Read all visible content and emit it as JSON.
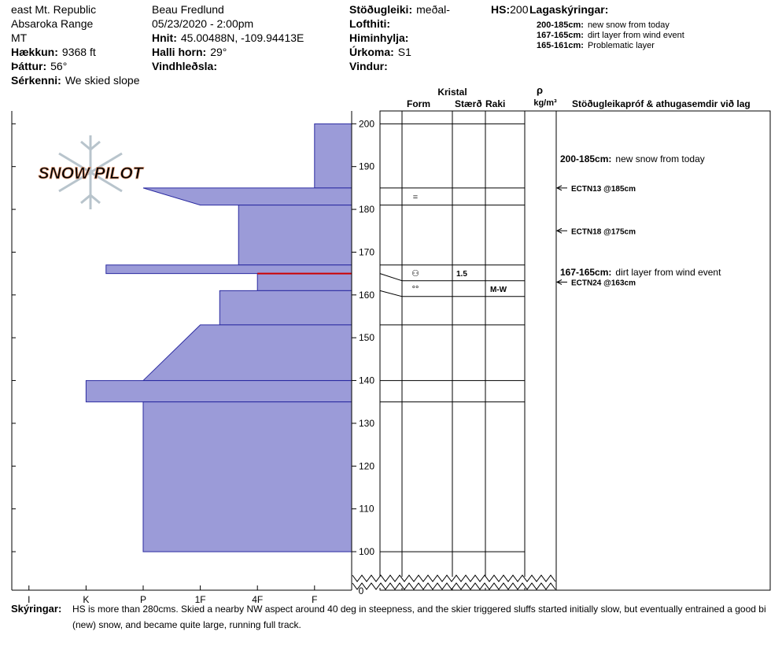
{
  "header": {
    "location": [
      "east Mt. Republic",
      "Absaroka Range",
      "MT"
    ],
    "fields_left": [
      {
        "label": "Hækkun:",
        "value": "9368 ft"
      },
      {
        "label": "Þáttur:",
        "value": "56°"
      },
      {
        "label": "Sérkenni:",
        "value": "We skied slope"
      }
    ],
    "observer": "Beau  Fredlund",
    "datetime": "05/23/2020 - 2:00pm",
    "fields_mid": [
      {
        "label": "Hnit:",
        "value": "45.00488N, -109.94413E"
      },
      {
        "label": "Halli horn:",
        "value": "29°"
      },
      {
        "label": "Vindhleðsla:"
      }
    ],
    "fields_right": [
      {
        "label": "Stöðugleiki:",
        "value": "meðal-"
      },
      {
        "label": "Lofthiti:"
      },
      {
        "label": "Himinhylja:"
      },
      {
        "label": "Úrkoma:",
        "value": "S1"
      },
      {
        "label": "Vindur:"
      }
    ],
    "hs": {
      "label": "HS:",
      "value": "200"
    },
    "legend_title": "Lagaskýringar:",
    "legend": [
      {
        "label": "200-185cm:",
        "text": "new snow from today"
      },
      {
        "label": "167-165cm:",
        "text": "dirt layer from wind event"
      },
      {
        "label": "165-161cm:",
        "text": "Problematic layer"
      }
    ]
  },
  "logo": "SNOW PILOT",
  "chart_data": {
    "type": "snow-profile",
    "xlim": [
      6.3,
      0.35
    ],
    "xticks": [
      {
        "value": 6,
        "label": "I"
      },
      {
        "value": 5,
        "label": "K"
      },
      {
        "value": 4,
        "label": "P"
      },
      {
        "value": 3,
        "label": "1F"
      },
      {
        "value": 2,
        "label": "4F"
      },
      {
        "value": 1,
        "label": "F"
      }
    ],
    "ylim": [
      91,
      203
    ],
    "yticks": [
      100,
      110,
      120,
      130,
      140,
      150,
      160,
      170,
      180,
      190,
      200
    ],
    "axis_break_label": 0,
    "color": "#9b9bd8",
    "layers": [
      {
        "top": 200,
        "bottom": 185,
        "hardness_top": 1,
        "hardness_bottom": 1
      },
      {
        "top": 185,
        "bottom": 181,
        "hardness_top": 4,
        "hardness_bottom": 3
      },
      {
        "top": 181,
        "bottom": 167,
        "hardness_top": 2.33,
        "hardness_bottom": 2.33
      },
      {
        "top": 167,
        "bottom": 165,
        "hardness_top": 4.65,
        "hardness_bottom": 4.65
      },
      {
        "top": 165,
        "bottom": 161,
        "hardness_top": 2,
        "hardness_bottom": 2
      },
      {
        "top": 161,
        "bottom": 153,
        "hardness_top": 2.66,
        "hardness_bottom": 2.66
      },
      {
        "top": 153,
        "bottom": 140,
        "hardness_top": 3,
        "hardness_bottom": 4
      },
      {
        "top": 140,
        "bottom": 135,
        "hardness_top": 5,
        "hardness_bottom": 5
      },
      {
        "top": 135,
        "bottom": 100,
        "hardness_top": 4,
        "hardness_bottom": 4
      }
    ],
    "problematic_line": {
      "depth": 165,
      "color": "#cc0000"
    },
    "column_headers": {
      "crystal": "Kristal",
      "form": "Form",
      "size": "Stærð",
      "moisture": "Raki",
      "density_symbol": "ρ",
      "density_unit": "kg/m³",
      "tests": "Stöðugleikapróf & athugasemdir við lag"
    },
    "crystals": [
      {
        "top": 185,
        "bottom": 181,
        "form": "="
      },
      {
        "top": 167,
        "bottom": 165,
        "form": "⚇",
        "size": "1.5"
      },
      {
        "top": 165,
        "bottom": 161,
        "form": "°°",
        "moisture": "M-W"
      }
    ],
    "comments": [
      {
        "top": 200,
        "bottom": 185,
        "label": "200-185cm:",
        "text": "new snow from today"
      },
      {
        "top": 167,
        "bottom": 165,
        "label": "167-165cm:",
        "text": "dirt layer from wind event"
      }
    ],
    "tests": [
      {
        "depth": 185,
        "label": "ECTN13 @185cm"
      },
      {
        "depth": 175,
        "label": "ECTN18 @175cm"
      },
      {
        "depth": 163,
        "label": "ECTN24 @163cm"
      }
    ]
  },
  "footer": {
    "label": "Skýringar:",
    "lines": [
      "HS is more than 280cms.  Skied a nearby NW aspect around 40 deg in steepness, and the skier  triggered sluffs started initially slow, but eventually entrained a good bi",
      "(new) snow, and became quite large, running full track."
    ]
  }
}
